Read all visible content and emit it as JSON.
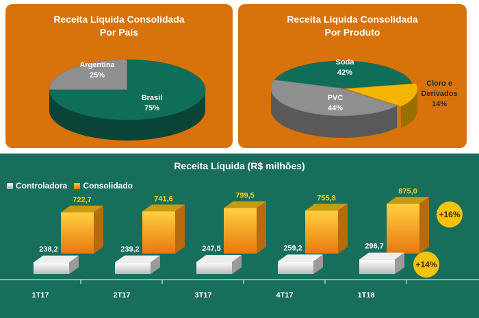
{
  "colors": {
    "panel_bg": "#d8720b",
    "bottom_bg": "#166e5b",
    "green_slice": "#0f6e58",
    "gray_slice": "#8f8f8f",
    "yellow_slice": "#f4b500",
    "consolidado_label": "#ffd21a",
    "badge": "#f5c20c"
  },
  "chart_data": [
    {
      "type": "pie",
      "title": "Receita Líquida Consolidada\nPor País",
      "slices": [
        {
          "label": "Argentina",
          "value": 25,
          "value_label": "25%"
        },
        {
          "label": "Brasil",
          "value": 75,
          "value_label": "75%"
        }
      ]
    },
    {
      "type": "pie",
      "title": "Receita Líquida Consolidada\nPor Produto",
      "slices": [
        {
          "label": "Soda",
          "value": 42,
          "value_label": "42%"
        },
        {
          "label": "Cloro e\nDerivados",
          "value": 14,
          "value_label": "14%"
        },
        {
          "label": "PVC",
          "value": 44,
          "value_label": "44%"
        }
      ]
    },
    {
      "type": "bar",
      "title": "Receita Líquida (R$ milhões)",
      "categories": [
        "1T17",
        "2T17",
        "3T17",
        "4T17",
        "1T18"
      ],
      "series": [
        {
          "name": "Controladora",
          "values": [
            238.2,
            239.2,
            247.5,
            259.2,
            296.7
          ],
          "labels": [
            "238,2",
            "239,2",
            "247,5",
            "259,2",
            "296,7"
          ]
        },
        {
          "name": "Consolidado",
          "values": [
            722.7,
            741.6,
            799.5,
            755.8,
            875.0
          ],
          "labels": [
            "722,7",
            "741,6",
            "799,5",
            "755,8",
            "875,0"
          ]
        }
      ],
      "ylim": [
        0,
        900
      ],
      "legend": "top-left",
      "annotations": {
        "consolidado_growth": "+16%",
        "controladora_growth": "+14%"
      }
    }
  ]
}
